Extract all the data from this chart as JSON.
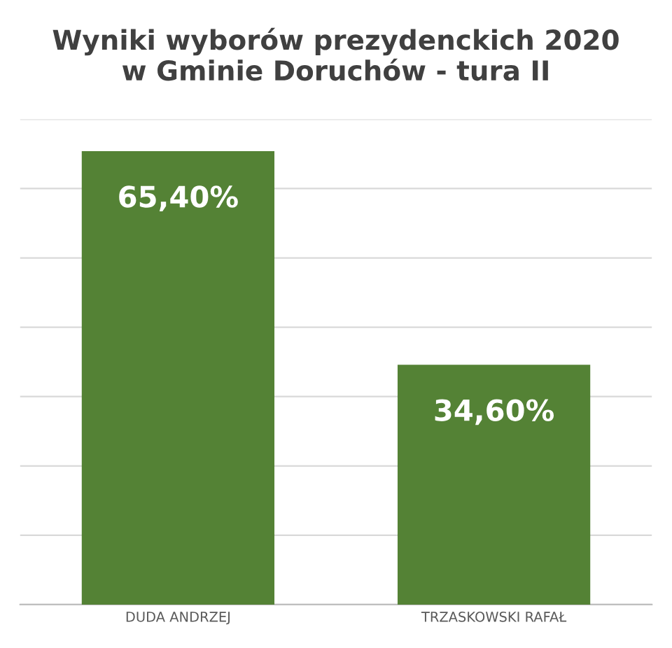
{
  "chart_data": {
    "type": "bar",
    "title": "Wyniki wyborów prezydenckich 2020\nw Gminie Doruchów - tura II",
    "categories": [
      "DUDA ANDRZEJ",
      "TRZASKOWSKI RAFAŁ"
    ],
    "values": [
      65.4,
      34.6
    ],
    "value_labels": [
      "65,40%",
      "34,60%"
    ],
    "color": "#548235",
    "ylim": [
      0,
      70
    ],
    "yticks": [
      {
        "value": 0,
        "label": null
      },
      {
        "value": 10,
        "label": null
      },
      {
        "value": 20,
        "label": null
      },
      {
        "value": 30,
        "label": null
      },
      {
        "value": 40,
        "label": null
      },
      {
        "value": 50,
        "label": null
      },
      {
        "value": 60,
        "label": null
      },
      {
        "value": 70,
        "label": null
      }
    ],
    "grid": "y",
    "tick_labels": "x"
  }
}
